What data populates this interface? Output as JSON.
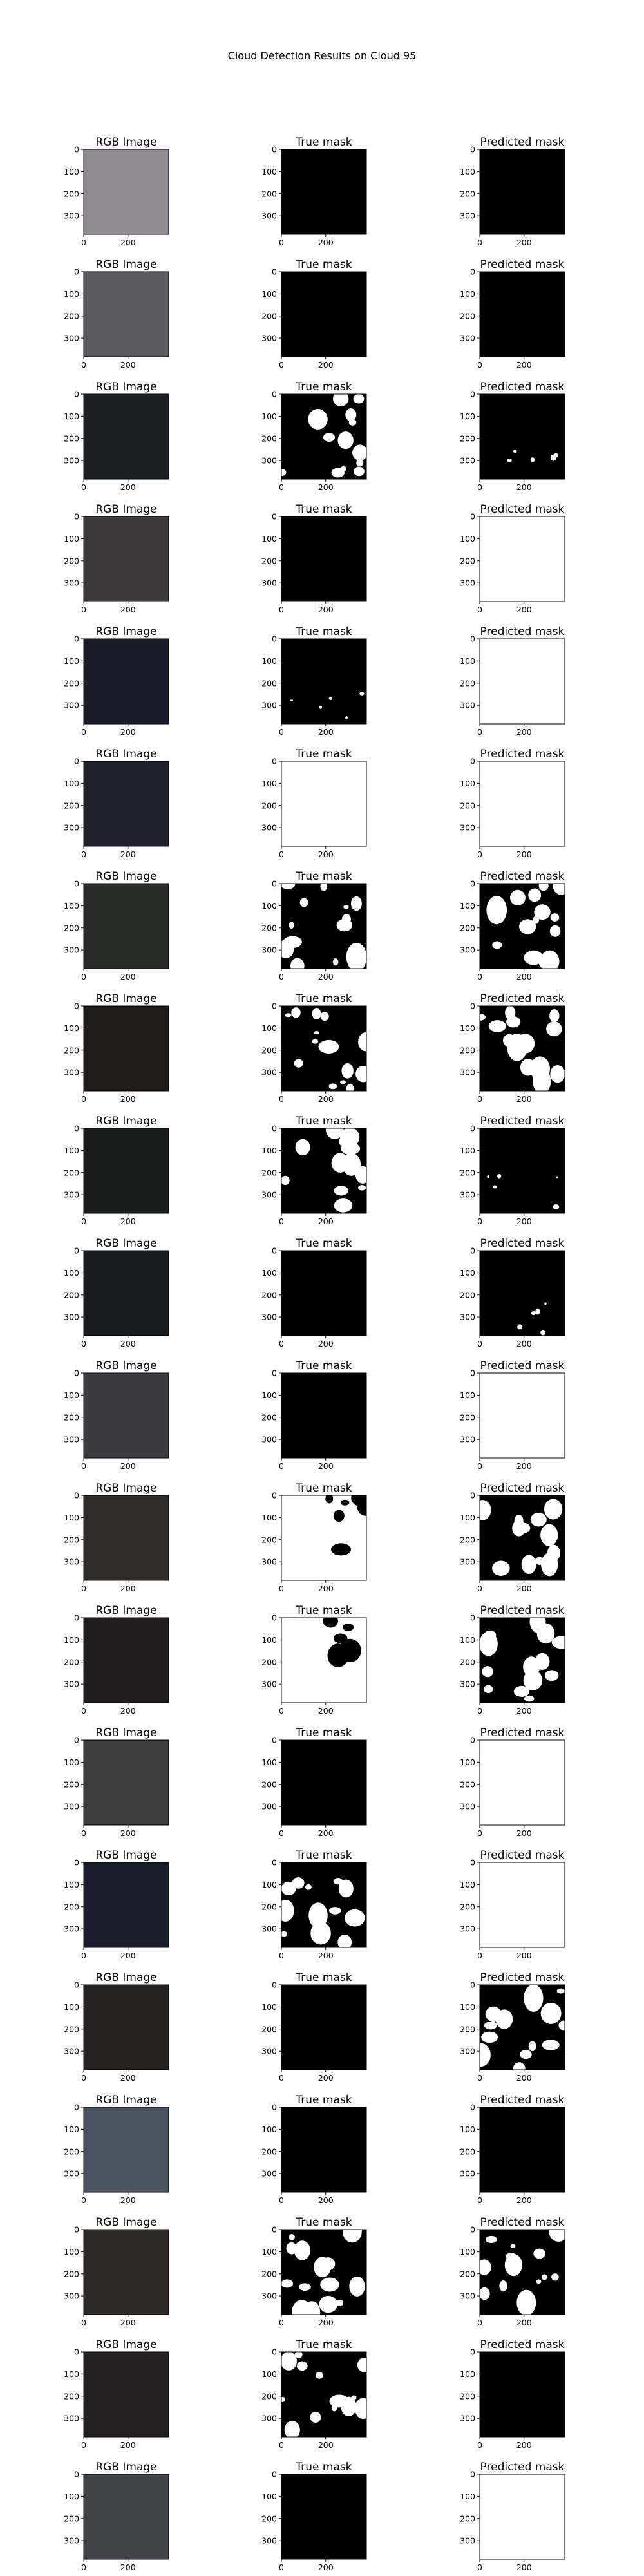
{
  "figure": {
    "title": "Cloud Detection Results on Cloud 95"
  },
  "chart_data": {
    "type": "image-grid",
    "title": "Cloud Detection Results on Cloud 95",
    "column_titles": [
      "RGB Image",
      "True mask",
      "Predicted mask"
    ],
    "x_ticks": [
      0,
      200
    ],
    "y_ticks": [
      0,
      100,
      200,
      300
    ],
    "image_extent": [
      0,
      384
    ],
    "rows": [
      {
        "rgb": "#8e8c92",
        "true_mask": "black",
        "pred_mask": "black"
      },
      {
        "rgb": "#5b5b5f",
        "true_mask": "black",
        "pred_mask": "black"
      },
      {
        "rgb": "#1d1f24",
        "true_mask": "mixed",
        "pred_mask": "mostly-black"
      },
      {
        "rgb": "#3a3838",
        "true_mask": "black",
        "pred_mask": "white"
      },
      {
        "rgb": "#1a1d27",
        "true_mask": "mostly-black",
        "pred_mask": "white"
      },
      {
        "rgb": "#1e2129",
        "true_mask": "white",
        "pred_mask": "white"
      },
      {
        "rgb": "#2a2c2a",
        "true_mask": "mixed",
        "pred_mask": "mixed"
      },
      {
        "rgb": "#1f1e1d",
        "true_mask": "mixed",
        "pred_mask": "mixed"
      },
      {
        "rgb": "#1b1c1c",
        "true_mask": "mixed",
        "pred_mask": "mostly-black"
      },
      {
        "rgb": "#1a1b1e",
        "true_mask": "black",
        "pred_mask": "mostly-black"
      },
      {
        "rgb": "#3b3a3d",
        "true_mask": "black",
        "pred_mask": "white"
      },
      {
        "rgb": "#2e2b29",
        "true_mask": "mostly-white",
        "pred_mask": "mixed"
      },
      {
        "rgb": "#201e1e",
        "true_mask": "mostly-white",
        "pred_mask": "mixed"
      },
      {
        "rgb": "#3e3d3e",
        "true_mask": "black",
        "pred_mask": "white"
      },
      {
        "rgb": "#1b1f2b",
        "true_mask": "mixed",
        "pred_mask": "white"
      },
      {
        "rgb": "#252222",
        "true_mask": "black",
        "pred_mask": "mixed"
      },
      {
        "rgb": "#4b535f",
        "true_mask": "black",
        "pred_mask": "black"
      },
      {
        "rgb": "#2f2a27",
        "true_mask": "mixed",
        "pred_mask": "mixed"
      },
      {
        "rgb": "#222020",
        "true_mask": "mixed",
        "pred_mask": "black"
      },
      {
        "rgb": "#414247",
        "true_mask": "black",
        "pred_mask": "white"
      }
    ]
  }
}
